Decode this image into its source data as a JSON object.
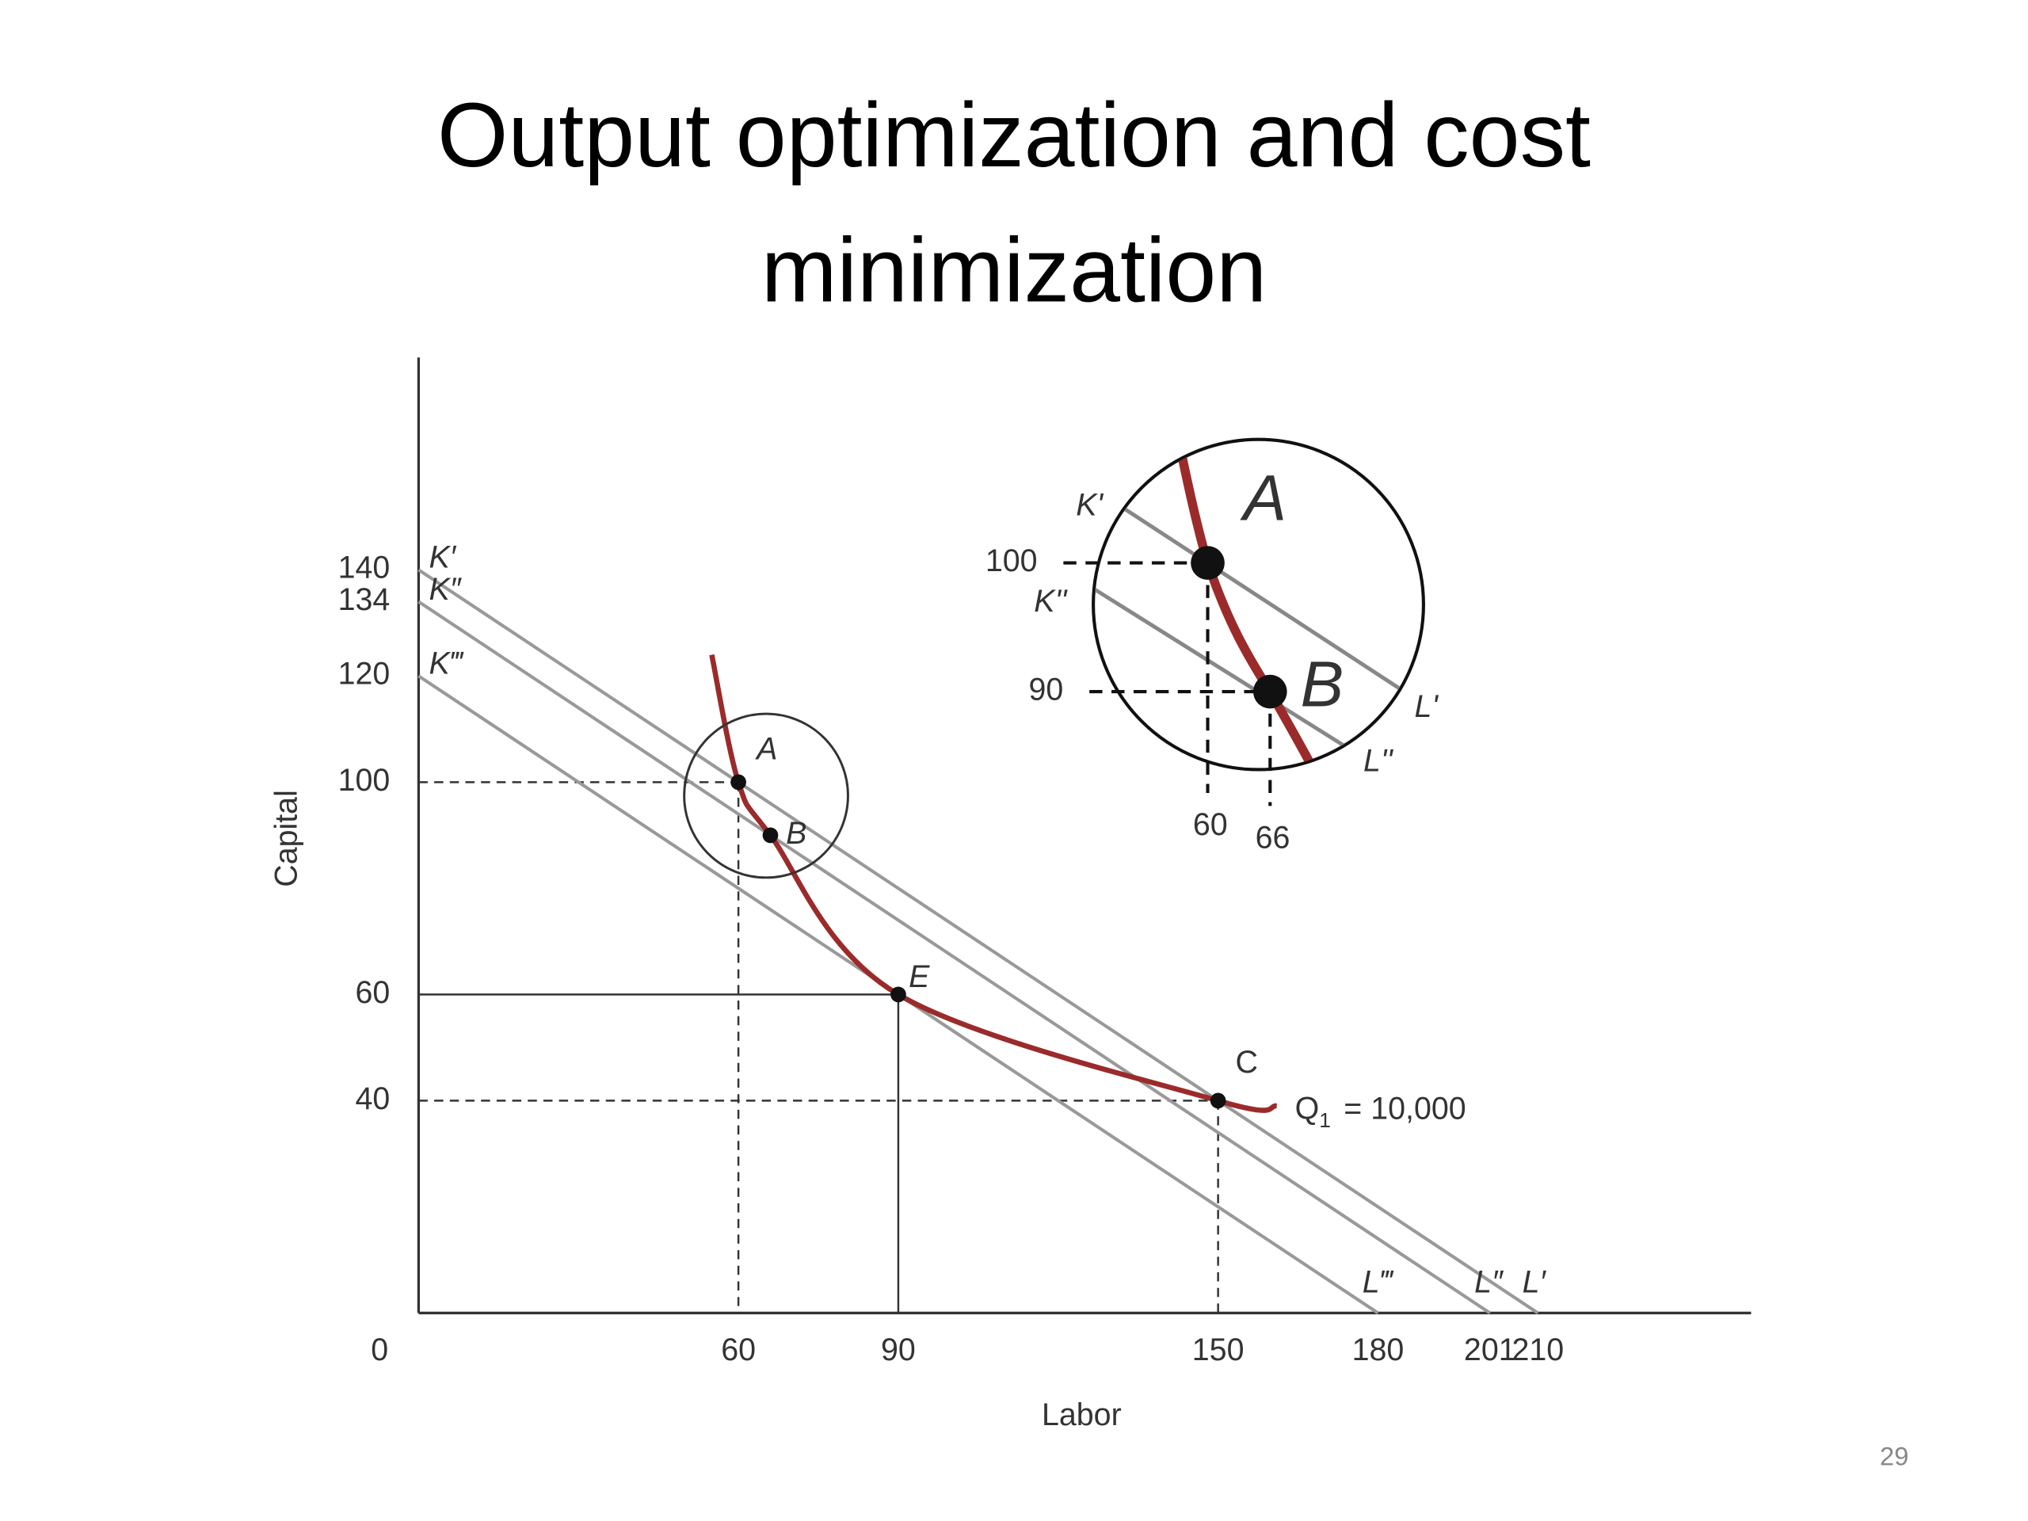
{
  "page_number": "29",
  "chart_data": {
    "type": "isocost",
    "title": "Output optimization and cost minimization",
    "x_label": "Labor",
    "y_label": "Capital",
    "xlim": [
      0,
      250
    ],
    "ylim": [
      0,
      180
    ],
    "xticks": [
      0,
      60,
      90,
      150,
      180,
      201,
      210
    ],
    "yticks": [
      40,
      60,
      100,
      120,
      134,
      140
    ],
    "isocost_lines": [
      {
        "start_label": "K′",
        "end_label": "L′",
        "y_intercept": 140,
        "x_intercept": 210
      },
      {
        "start_label": "K″",
        "end_label": "L″",
        "y_intercept": 134,
        "x_intercept": 201
      },
      {
        "start_label": "K‴",
        "end_label": "L‴",
        "y_intercept": 120,
        "x_intercept": 180
      }
    ],
    "isoquant": {
      "label": "Q",
      "subscript": "1",
      "value_text": "= 10,000",
      "color": "#9b2b2b",
      "x": [
        55,
        60,
        66,
        90,
        150,
        161
      ],
      "y": [
        124,
        100,
        90,
        60,
        40,
        39
      ]
    },
    "points": [
      {
        "label": "A",
        "x": 60,
        "y": 100
      },
      {
        "label": "B",
        "x": 66,
        "y": 90
      },
      {
        "label": "E",
        "x": 90,
        "y": 60
      },
      {
        "label": "C",
        "x": 150,
        "y": 40
      }
    ],
    "inset": {
      "line_labels": [
        {
          "start": "K'",
          "end": "L'"
        },
        {
          "start": "K''",
          "end": "L''"
        }
      ],
      "yticks": [
        100,
        90
      ],
      "xticks": [
        60,
        66
      ]
    }
  }
}
